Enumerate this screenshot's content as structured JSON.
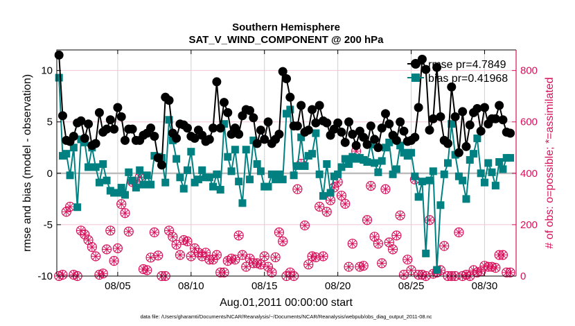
{
  "chart_data": {
    "type": "line",
    "title": "Southern Hemisphere",
    "subtitle": "SAT_V_WIND_COMPONENT @ 200 hPa",
    "xlabel": "Aug.01,2011 00:00:00 start",
    "ylabel": "rmse and bias (model - observation)",
    "ylabel_right": "# of obs: o=possible; *=assimilated",
    "footnote": "data file: /Users/gharamti/Documents/NCAR/Reanalysis/~/Documents/NCAR/Reanalysis/webpub/obs_diag_output_2011-08.nc",
    "x_step_days": 0.25,
    "x_start_day": 1,
    "xlim_days": [
      0.85,
      32.15
    ],
    "ylim": [
      -10,
      12
    ],
    "ylim_right": [
      0,
      880
    ],
    "xticks": [
      {
        "day": 5,
        "label": "08/05"
      },
      {
        "day": 10,
        "label": "08/10"
      },
      {
        "day": 15,
        "label": "08/15"
      },
      {
        "day": 20,
        "label": "08/20"
      },
      {
        "day": 25,
        "label": "08/25"
      },
      {
        "day": 30,
        "label": "08/30"
      }
    ],
    "yticks": [
      "-10",
      "-5",
      "0",
      "5",
      "10"
    ],
    "yticks_right": [
      "0",
      "200",
      "400",
      "600",
      "800"
    ],
    "grid": true,
    "legend_position": "top-right",
    "colors": {
      "rmse": "#000000",
      "bias": "#008080",
      "obs": "#d6105a",
      "grid_v": "#d0d0d0",
      "grid_h": "#f2c4d6",
      "zero": "#bdbdbd"
    },
    "series": [
      {
        "name": "rmse",
        "legend": "rmse pr=4.7849",
        "marker": "circle",
        "values": [
          11.5,
          5.6,
          3.2,
          3.1,
          3.6,
          4.9,
          5.1,
          3.4,
          4.8,
          2.7,
          2.9,
          5.9,
          4.0,
          4.3,
          5.2,
          4.3,
          6.4,
          5.5,
          3.2,
          4.3,
          4.3,
          3.2,
          3.2,
          3.7,
          3.9,
          4.4,
          3.6,
          1.5,
          0.8,
          7.4,
          7.1,
          3.9,
          3.4,
          4.8,
          4.7,
          4.4,
          3.6,
          3.4,
          4.2,
          3.7,
          3.1,
          3.3,
          4.4,
          8.9,
          4.4,
          6.9,
          5.9,
          3.8,
          4.4,
          3.8,
          5.6,
          6.2,
          6.1,
          5.4,
          2.9,
          4.2,
          3.3,
          5.0,
          2.9,
          3.3,
          3.8,
          9.9,
          9.2,
          7.4,
          4.6,
          4.6,
          6.6,
          4.0,
          4.2,
          6.2,
          4.9,
          6.6,
          5.1,
          4.9,
          3.7,
          4.3,
          4.9,
          4.0,
          3.0,
          5.0,
          3.8,
          2.7,
          4.1,
          3.5,
          2.8,
          4.6,
          3.3,
          2.5,
          4.4,
          5.8,
          4.8,
          3.7,
          3.2,
          5.0,
          4.1,
          3.1,
          3.2,
          3.5,
          6.4,
          11.1,
          10.1,
          4.2,
          5.3,
          10.3,
          5.5,
          3.2,
          2.9,
          8.4,
          5.5,
          2.0,
          6.0,
          2.6,
          4.7,
          5.9,
          6.3,
          4.1,
          6.4,
          4.8,
          5.3,
          5.3,
          6.6,
          5.2,
          4.0,
          3.9
        ]
      },
      {
        "name": "bias",
        "legend": "bias pr=0.41968",
        "marker": "square",
        "values": [
          9.3,
          1.7,
          1.9,
          -0.2,
          2.5,
          -3.3,
          3.3,
          3.0,
          0.6,
          2.5,
          0.6,
          -0.9,
          0.9,
          -0.7,
          -1.7,
          -1.9,
          -1.9,
          -1.4,
          -2.1,
          0.1,
          -0.7,
          -1.4,
          0.3,
          -1.1,
          -0.2,
          -1.1,
          1.7,
          1.6,
          1.5,
          -0.9,
          5.2,
          3.2,
          1.4,
          -0.4,
          -1.5,
          0.3,
          2.1,
          -0.9,
          -0.6,
          0.3,
          -0.4,
          -0.4,
          -1.3,
          -0.1,
          -1.6,
          4.8,
          1.6,
          0.2,
          2.3,
          -0.8,
          -2.9,
          2.3,
          -0.6,
          3.2,
          0.9,
          0.2,
          -1.3,
          -1.3,
          -0.1,
          -0.6,
          -0.1,
          -0.6,
          5.8,
          6.2,
          -0.2,
          0.7,
          3.5,
          0.7,
          1.7,
          1.9,
          3.9,
          -0.1,
          -2.2,
          0.9,
          -1.9,
          -0.3,
          -0.1,
          0.6,
          1.4,
          0.9,
          1.6,
          1.4,
          1.5,
          1.3,
          1.1,
          2.8,
          1.0,
          0.1,
          1.2,
          2.5,
          3.0,
          -0.1,
          0.4,
          2.7,
          2.0,
          1.7,
          2.0,
          -0.3,
          -2.3,
          -0.8,
          -7.8,
          -0.7,
          0.2,
          -9.4,
          -3.1,
          -0.1,
          1.0,
          4.8,
          1.8,
          -0.3,
          -0.7,
          -2.5,
          1.3,
          1.9,
          3.4,
          0.0,
          -0.9,
          1.0,
          0.1,
          -1.2,
          1.1,
          0.4,
          1.5,
          1.5
        ]
      },
      {
        "name": "obs_possible",
        "marker": "o",
        "axis": "right",
        "values": [
          0,
          5,
          250,
          270,
          5,
          0,
          177,
          162,
          140,
          113,
          77,
          5,
          10,
          104,
          177,
          59,
          108,
          280,
          245,
          173,
          366,
          362,
          385,
          27,
          23,
          72,
          170,
          80,
          0,
          0,
          177,
          153,
          122,
          82,
          140,
          135,
          77,
          108,
          91,
          77,
          91,
          64,
          64,
          82,
          14,
          14,
          59,
          68,
          64,
          158,
          82,
          36,
          68,
          50,
          50,
          45,
          77,
          36,
          14,
          73,
          170,
          135,
          0,
          14,
          0,
          338,
          437,
          197,
          45,
          77,
          73,
          270,
          77,
          250,
          295,
          345,
          366,
          313,
          281,
          36,
          126,
          486,
          36,
          40,
          218,
          351,
          153,
          126,
          50,
          338,
          131,
          104,
          158,
          236,
          5,
          64,
          23,
          376,
          5,
          5,
          0,
          218,
          9,
          14,
          23,
          117,
          0,
          0,
          0,
          170,
          0,
          5,
          0,
          23,
          14,
          18,
          40,
          36,
          36,
          32,
          82,
          82,
          14,
          14
        ]
      },
      {
        "name": "obs_assimilated",
        "marker": "*",
        "axis": "right",
        "values": [
          0,
          5,
          250,
          270,
          5,
          0,
          177,
          162,
          140,
          113,
          77,
          5,
          10,
          104,
          177,
          59,
          108,
          280,
          245,
          173,
          366,
          362,
          385,
          27,
          23,
          72,
          170,
          80,
          0,
          0,
          177,
          153,
          122,
          82,
          140,
          135,
          77,
          108,
          91,
          77,
          91,
          64,
          64,
          82,
          14,
          14,
          59,
          68,
          64,
          158,
          82,
          36,
          68,
          50,
          50,
          45,
          77,
          36,
          14,
          73,
          170,
          135,
          0,
          14,
          0,
          338,
          437,
          197,
          45,
          77,
          73,
          270,
          77,
          250,
          295,
          345,
          366,
          313,
          281,
          36,
          126,
          486,
          36,
          40,
          218,
          351,
          153,
          126,
          50,
          338,
          131,
          104,
          158,
          236,
          5,
          64,
          23,
          376,
          5,
          5,
          0,
          218,
          9,
          14,
          23,
          117,
          0,
          0,
          0,
          170,
          0,
          5,
          0,
          23,
          14,
          18,
          40,
          36,
          36,
          32,
          82,
          82,
          14,
          14
        ]
      }
    ]
  }
}
